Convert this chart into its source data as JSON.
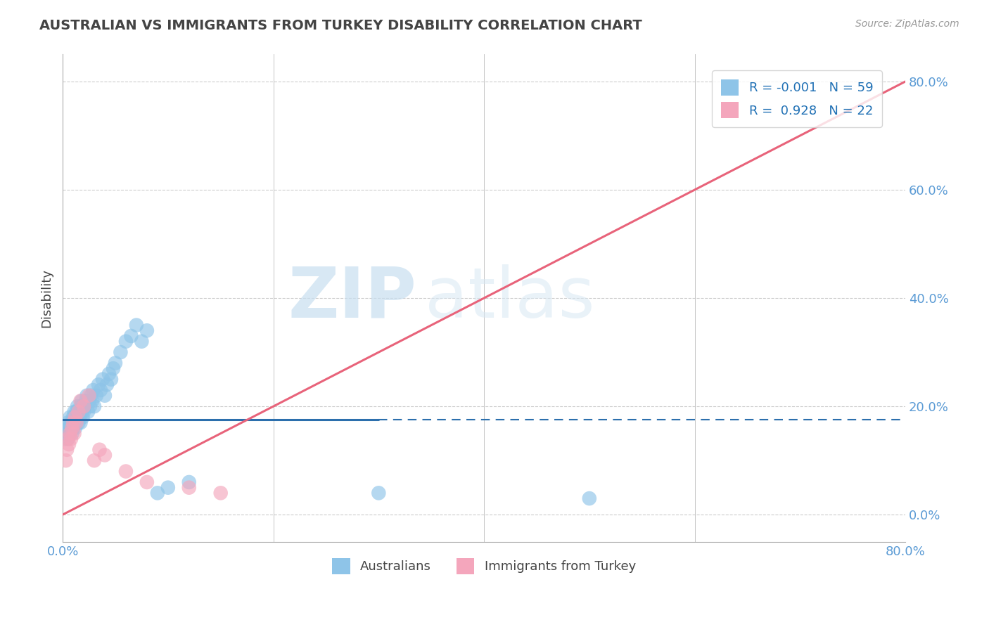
{
  "title": "AUSTRALIAN VS IMMIGRANTS FROM TURKEY DISABILITY CORRELATION CHART",
  "source": "Source: ZipAtlas.com",
  "ylabel": "Disability",
  "xlim": [
    0.0,
    0.8
  ],
  "ylim": [
    -0.05,
    0.85
  ],
  "x_ticks": [
    0.0,
    0.2,
    0.4,
    0.6,
    0.8
  ],
  "x_tick_labels": [
    "0.0%",
    "",
    "",
    "",
    "80.0%"
  ],
  "y_ticks": [
    0.0,
    0.2,
    0.4,
    0.6,
    0.8
  ],
  "y_tick_labels": [
    "0.0%",
    "20.0%",
    "40.0%",
    "60.0%",
    "80.0%"
  ],
  "blue_R": -0.001,
  "blue_N": 59,
  "pink_R": 0.928,
  "pink_N": 22,
  "blue_color": "#8ec4e8",
  "pink_color": "#f4a6bc",
  "blue_line_color": "#2c6fad",
  "pink_line_color": "#e8637a",
  "legend_label_blue": "Australians",
  "legend_label_pink": "Immigrants from Turkey",
  "watermark_zip": "ZIP",
  "watermark_atlas": "atlas",
  "background_color": "#ffffff",
  "grid_color": "#cccccc",
  "title_color": "#444444",
  "blue_line_y": 0.175,
  "blue_line_x_solid_end": 0.3,
  "pink_line_x0": 0.0,
  "pink_line_y0": 0.0,
  "pink_line_x1": 0.8,
  "pink_line_y1": 0.8,
  "blue_x": [
    0.002,
    0.003,
    0.004,
    0.005,
    0.005,
    0.006,
    0.007,
    0.007,
    0.008,
    0.009,
    0.01,
    0.01,
    0.011,
    0.011,
    0.012,
    0.012,
    0.013,
    0.013,
    0.014,
    0.015,
    0.015,
    0.016,
    0.017,
    0.017,
    0.018,
    0.018,
    0.019,
    0.02,
    0.021,
    0.022,
    0.023,
    0.024,
    0.025,
    0.026,
    0.027,
    0.028,
    0.029,
    0.03,
    0.032,
    0.034,
    0.036,
    0.038,
    0.04,
    0.042,
    0.044,
    0.046,
    0.048,
    0.05,
    0.055,
    0.06,
    0.065,
    0.07,
    0.075,
    0.08,
    0.09,
    0.1,
    0.12,
    0.3,
    0.5
  ],
  "blue_y": [
    0.14,
    0.16,
    0.15,
    0.17,
    0.14,
    0.16,
    0.15,
    0.18,
    0.17,
    0.15,
    0.18,
    0.16,
    0.17,
    0.19,
    0.16,
    0.18,
    0.17,
    0.19,
    0.2,
    0.17,
    0.19,
    0.18,
    0.2,
    0.17,
    0.19,
    0.21,
    0.18,
    0.19,
    0.2,
    0.21,
    0.22,
    0.19,
    0.21,
    0.2,
    0.22,
    0.21,
    0.23,
    0.2,
    0.22,
    0.24,
    0.23,
    0.25,
    0.22,
    0.24,
    0.26,
    0.25,
    0.27,
    0.28,
    0.3,
    0.32,
    0.33,
    0.35,
    0.32,
    0.34,
    0.04,
    0.05,
    0.06,
    0.04,
    0.03
  ],
  "pink_x": [
    0.003,
    0.004,
    0.005,
    0.006,
    0.007,
    0.008,
    0.009,
    0.01,
    0.011,
    0.012,
    0.013,
    0.015,
    0.017,
    0.02,
    0.025,
    0.03,
    0.035,
    0.04,
    0.06,
    0.08,
    0.12,
    0.15
  ],
  "pink_y": [
    0.1,
    0.12,
    0.14,
    0.13,
    0.15,
    0.14,
    0.16,
    0.17,
    0.15,
    0.18,
    0.17,
    0.19,
    0.21,
    0.2,
    0.22,
    0.1,
    0.12,
    0.11,
    0.08,
    0.06,
    0.05,
    0.04
  ]
}
